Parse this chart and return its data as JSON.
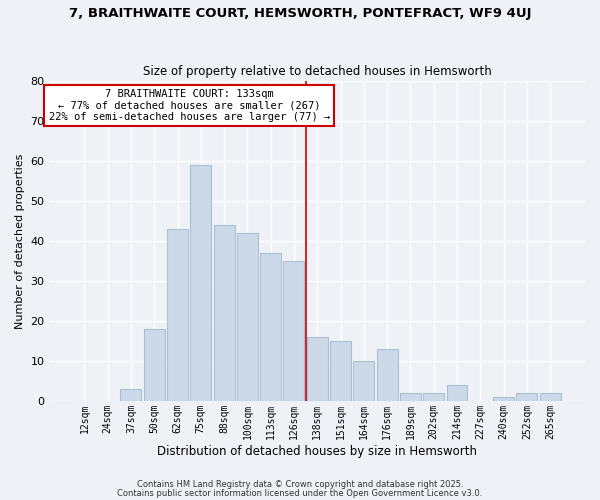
{
  "title": "7, BRAITHWAITE COURT, HEMSWORTH, PONTEFRACT, WF9 4UJ",
  "subtitle": "Size of property relative to detached houses in Hemsworth",
  "xlabel": "Distribution of detached houses by size in Hemsworth",
  "ylabel": "Number of detached properties",
  "bar_labels": [
    "12sqm",
    "24sqm",
    "37sqm",
    "50sqm",
    "62sqm",
    "75sqm",
    "88sqm",
    "100sqm",
    "113sqm",
    "126sqm",
    "138sqm",
    "151sqm",
    "164sqm",
    "176sqm",
    "189sqm",
    "202sqm",
    "214sqm",
    "227sqm",
    "240sqm",
    "252sqm",
    "265sqm"
  ],
  "bar_values": [
    0,
    0,
    3,
    18,
    43,
    59,
    44,
    42,
    37,
    35,
    16,
    15,
    10,
    13,
    2,
    2,
    4,
    0,
    1,
    2,
    2
  ],
  "bar_color": "#ccd9e8",
  "bar_edge_color": "#a8bfd4",
  "vline_x": 9.5,
  "vline_color": "#cc0000",
  "annotation_title": "7 BRAITHWAITE COURT: 133sqm",
  "annotation_line1": "← 77% of detached houses are smaller (267)",
  "annotation_line2": "22% of semi-detached houses are larger (77) →",
  "annotation_box_color": "#ffffff",
  "annotation_box_edge": "#cc0000",
  "bg_color": "#eef2f7",
  "grid_color": "#ffffff",
  "ylim": [
    0,
    80
  ],
  "yticks": [
    0,
    10,
    20,
    30,
    40,
    50,
    60,
    70,
    80
  ],
  "footer1": "Contains HM Land Registry data © Crown copyright and database right 2025.",
  "footer2": "Contains public sector information licensed under the Open Government Licence v3.0."
}
